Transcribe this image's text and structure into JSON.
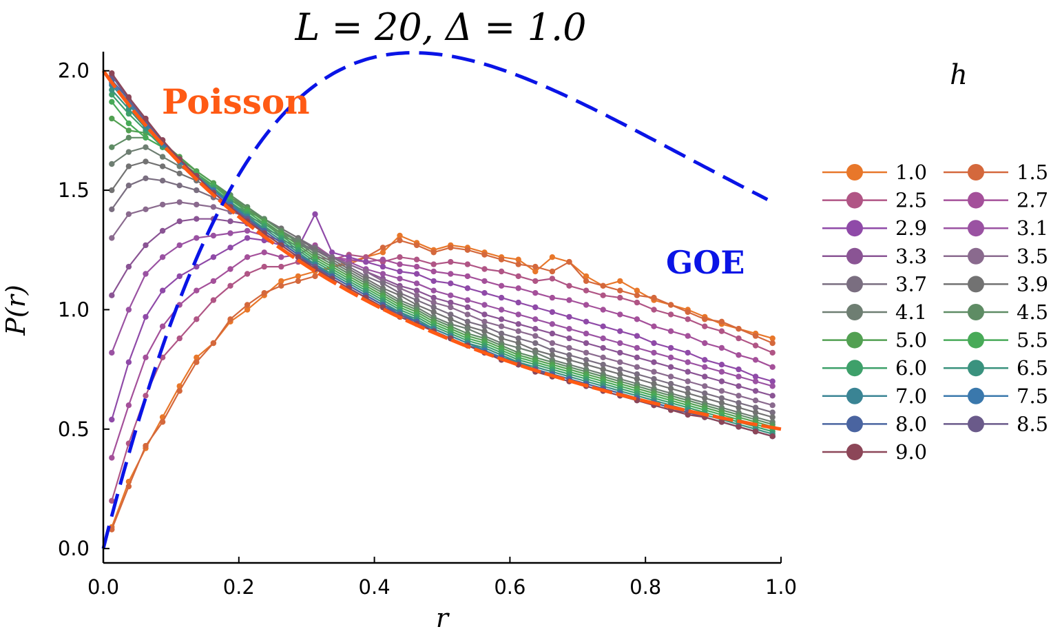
{
  "chart_data": {
    "type": "line",
    "title": "L = 20, Δ = 1.0",
    "xlabel": "r",
    "ylabel": "P(r)",
    "xlim": [
      0.0,
      1.0
    ],
    "ylim": [
      -0.06,
      2.08
    ],
    "xticks": [
      0.0,
      0.2,
      0.4,
      0.6,
      0.8,
      1.0
    ],
    "xtick_labels": [
      "0.0",
      "0.2",
      "0.4",
      "0.6",
      "0.8",
      "1.0"
    ],
    "yticks": [
      0.0,
      0.5,
      1.0,
      1.5,
      2.0
    ],
    "ytick_labels": [
      "0.0",
      "0.5",
      "1.0",
      "1.5",
      "2.0"
    ],
    "grid": false,
    "legend_title": "h",
    "legend_position": "right",
    "annotations": [
      {
        "text": "Poisson",
        "x": 0.09,
        "y": 1.81,
        "color": "#ff5a14"
      },
      {
        "text": "GOE",
        "x": 0.83,
        "y": 1.18,
        "color": "#0a14e6"
      }
    ],
    "reference_curves": [
      {
        "name": "Poisson",
        "formula": "2/(1+r)^2",
        "color": "#ff5a14",
        "dash": "solid"
      },
      {
        "name": "GOE",
        "formula": "(81*sqrt(3)/(4*pi)) * (r+r^2)^1 / (1+r+r^2)^(5/2)",
        "color": "#0a14e6",
        "dash": "long-dash"
      }
    ],
    "r_grid": [
      0.0125,
      0.0375,
      0.0625,
      0.0875,
      0.1125,
      0.1375,
      0.1625,
      0.1875,
      0.2125,
      0.2375,
      0.2625,
      0.2875,
      0.3125,
      0.3375,
      0.3625,
      0.3875,
      0.4125,
      0.4375,
      0.4625,
      0.4875,
      0.5125,
      0.5375,
      0.5625,
      0.5875,
      0.6125,
      0.6375,
      0.6625,
      0.6875,
      0.7125,
      0.7375,
      0.7625,
      0.7875,
      0.8125,
      0.8375,
      0.8625,
      0.8875,
      0.9125,
      0.9375,
      0.9625,
      0.9875
    ],
    "series": [
      {
        "name": "1.0",
        "color": "#e8772a",
        "values": [
          0.09,
          0.28,
          0.42,
          0.55,
          0.68,
          0.8,
          0.86,
          0.95,
          1.0,
          1.06,
          1.12,
          1.14,
          1.16,
          1.18,
          1.2,
          1.22,
          1.24,
          1.31,
          1.28,
          1.25,
          1.27,
          1.26,
          1.24,
          1.22,
          1.21,
          1.16,
          1.22,
          1.2,
          1.14,
          1.1,
          1.12,
          1.08,
          1.04,
          1.02,
          1.0,
          0.97,
          0.94,
          0.92,
          0.9,
          0.88
        ]
      },
      {
        "name": "1.5",
        "color": "#d4683c",
        "values": [
          0.08,
          0.26,
          0.43,
          0.53,
          0.66,
          0.78,
          0.86,
          0.96,
          1.02,
          1.07,
          1.1,
          1.12,
          1.14,
          1.18,
          1.19,
          1.22,
          1.26,
          1.29,
          1.27,
          1.24,
          1.26,
          1.25,
          1.23,
          1.21,
          1.19,
          1.18,
          1.16,
          1.2,
          1.12,
          1.1,
          1.08,
          1.06,
          1.05,
          1.02,
          0.99,
          0.96,
          0.95,
          0.92,
          0.89,
          0.86
        ]
      },
      {
        "name": "2.5",
        "color": "#b05585",
        "values": [
          0.2,
          0.44,
          0.64,
          0.8,
          0.88,
          0.96,
          1.04,
          1.1,
          1.15,
          1.18,
          1.18,
          1.2,
          1.22,
          1.21,
          1.23,
          1.22,
          1.2,
          1.22,
          1.21,
          1.19,
          1.2,
          1.19,
          1.17,
          1.16,
          1.14,
          1.12,
          1.13,
          1.1,
          1.08,
          1.06,
          1.05,
          1.03,
          1.0,
          0.98,
          0.96,
          0.93,
          0.91,
          0.88,
          0.85,
          0.82
        ]
      },
      {
        "name": "2.7",
        "color": "#a4509a",
        "values": [
          0.38,
          0.6,
          0.8,
          0.93,
          1.02,
          1.08,
          1.12,
          1.17,
          1.22,
          1.24,
          1.22,
          1.23,
          1.27,
          1.22,
          1.21,
          1.2,
          1.21,
          1.19,
          1.18,
          1.16,
          1.15,
          1.14,
          1.12,
          1.1,
          1.09,
          1.07,
          1.05,
          1.04,
          1.02,
          1.0,
          0.98,
          0.96,
          0.93,
          0.91,
          0.89,
          0.86,
          0.84,
          0.81,
          0.79,
          0.76
        ]
      },
      {
        "name": "2.9",
        "color": "#8f4aa8",
        "values": [
          0.54,
          0.78,
          0.97,
          1.08,
          1.14,
          1.18,
          1.22,
          1.26,
          1.3,
          1.29,
          1.27,
          1.26,
          1.4,
          1.24,
          1.22,
          1.2,
          1.18,
          1.16,
          1.15,
          1.12,
          1.11,
          1.09,
          1.07,
          1.05,
          1.03,
          1.01,
          0.99,
          0.97,
          0.95,
          0.93,
          0.91,
          0.89,
          0.86,
          0.84,
          0.82,
          0.79,
          0.77,
          0.75,
          0.72,
          0.7
        ]
      },
      {
        "name": "3.1",
        "color": "#9a52a2",
        "values": [
          0.82,
          1.0,
          1.15,
          1.22,
          1.27,
          1.3,
          1.31,
          1.32,
          1.33,
          1.31,
          1.29,
          1.27,
          1.25,
          1.22,
          1.2,
          1.17,
          1.15,
          1.13,
          1.11,
          1.08,
          1.06,
          1.04,
          1.02,
          1.0,
          0.98,
          0.96,
          0.94,
          0.92,
          0.9,
          0.88,
          0.86,
          0.84,
          0.82,
          0.8,
          0.78,
          0.76,
          0.74,
          0.72,
          0.7,
          0.68
        ]
      },
      {
        "name": "3.3",
        "color": "#8a5494",
        "values": [
          1.06,
          1.18,
          1.27,
          1.33,
          1.37,
          1.38,
          1.38,
          1.37,
          1.36,
          1.34,
          1.31,
          1.28,
          1.25,
          1.22,
          1.19,
          1.16,
          1.13,
          1.1,
          1.08,
          1.05,
          1.03,
          1.01,
          0.98,
          0.96,
          0.94,
          0.92,
          0.9,
          0.88,
          0.86,
          0.84,
          0.82,
          0.8,
          0.78,
          0.76,
          0.74,
          0.72,
          0.7,
          0.68,
          0.66,
          0.64
        ]
      },
      {
        "name": "3.5",
        "color": "#8a6a8e",
        "values": [
          1.3,
          1.4,
          1.42,
          1.44,
          1.45,
          1.44,
          1.43,
          1.41,
          1.39,
          1.36,
          1.32,
          1.29,
          1.26,
          1.22,
          1.19,
          1.16,
          1.12,
          1.09,
          1.06,
          1.03,
          1.01,
          0.98,
          0.95,
          0.93,
          0.91,
          0.89,
          0.86,
          0.84,
          0.82,
          0.8,
          0.78,
          0.76,
          0.74,
          0.72,
          0.7,
          0.68,
          0.66,
          0.64,
          0.62,
          0.6
        ]
      },
      {
        "name": "3.7",
        "color": "#7a6e80",
        "values": [
          1.42,
          1.52,
          1.55,
          1.54,
          1.52,
          1.5,
          1.47,
          1.44,
          1.41,
          1.38,
          1.34,
          1.3,
          1.26,
          1.22,
          1.18,
          1.14,
          1.11,
          1.07,
          1.04,
          1.01,
          0.98,
          0.95,
          0.93,
          0.9,
          0.88,
          0.86,
          0.83,
          0.81,
          0.79,
          0.77,
          0.75,
          0.73,
          0.71,
          0.69,
          0.67,
          0.65,
          0.63,
          0.61,
          0.59,
          0.57
        ]
      },
      {
        "name": "3.9",
        "color": "#727272",
        "values": [
          1.5,
          1.6,
          1.62,
          1.6,
          1.57,
          1.54,
          1.5,
          1.46,
          1.42,
          1.38,
          1.34,
          1.3,
          1.25,
          1.21,
          1.17,
          1.13,
          1.09,
          1.06,
          1.02,
          0.99,
          0.96,
          0.93,
          0.91,
          0.88,
          0.86,
          0.83,
          0.81,
          0.79,
          0.77,
          0.75,
          0.73,
          0.71,
          0.69,
          0.67,
          0.65,
          0.63,
          0.61,
          0.59,
          0.57,
          0.55
        ]
      },
      {
        "name": "4.1",
        "color": "#6e7e72",
        "values": [
          1.61,
          1.66,
          1.68,
          1.64,
          1.6,
          1.56,
          1.52,
          1.47,
          1.43,
          1.38,
          1.33,
          1.29,
          1.24,
          1.2,
          1.16,
          1.12,
          1.08,
          1.04,
          1.01,
          0.97,
          0.94,
          0.92,
          0.89,
          0.86,
          0.84,
          0.82,
          0.79,
          0.77,
          0.75,
          0.73,
          0.71,
          0.69,
          0.67,
          0.65,
          0.63,
          0.61,
          0.59,
          0.57,
          0.55,
          0.53
        ]
      },
      {
        "name": "4.5",
        "color": "#5e8c64",
        "values": [
          1.68,
          1.72,
          1.72,
          1.68,
          1.63,
          1.58,
          1.53,
          1.48,
          1.43,
          1.38,
          1.33,
          1.28,
          1.23,
          1.19,
          1.15,
          1.11,
          1.07,
          1.03,
          1.0,
          0.96,
          0.93,
          0.9,
          0.88,
          0.85,
          0.82,
          0.8,
          0.78,
          0.76,
          0.74,
          0.72,
          0.7,
          0.68,
          0.66,
          0.64,
          0.62,
          0.6,
          0.58,
          0.56,
          0.54,
          0.52
        ]
      },
      {
        "name": "5.0",
        "color": "#52a052",
        "values": [
          1.8,
          1.75,
          1.74,
          1.7,
          1.64,
          1.58,
          1.53,
          1.47,
          1.42,
          1.37,
          1.32,
          1.27,
          1.22,
          1.18,
          1.14,
          1.1,
          1.06,
          1.02,
          0.99,
          0.95,
          0.92,
          0.89,
          0.87,
          0.84,
          0.81,
          0.79,
          0.77,
          0.75,
          0.73,
          0.71,
          0.69,
          0.67,
          0.65,
          0.63,
          0.61,
          0.59,
          0.57,
          0.55,
          0.53,
          0.51
        ]
      },
      {
        "name": "5.5",
        "color": "#48aa58",
        "values": [
          1.87,
          1.78,
          1.72,
          1.68,
          1.62,
          1.57,
          1.52,
          1.46,
          1.41,
          1.36,
          1.31,
          1.26,
          1.21,
          1.17,
          1.13,
          1.09,
          1.05,
          1.01,
          0.98,
          0.94,
          0.91,
          0.88,
          0.86,
          0.83,
          0.8,
          0.78,
          0.76,
          0.74,
          0.72,
          0.7,
          0.68,
          0.66,
          0.64,
          0.62,
          0.6,
          0.58,
          0.56,
          0.54,
          0.52,
          0.5
        ]
      },
      {
        "name": "6.0",
        "color": "#3ea06a",
        "values": [
          1.9,
          1.82,
          1.75,
          1.68,
          1.62,
          1.56,
          1.51,
          1.45,
          1.4,
          1.35,
          1.3,
          1.25,
          1.2,
          1.16,
          1.12,
          1.08,
          1.04,
          1.0,
          0.97,
          0.93,
          0.9,
          0.87,
          0.85,
          0.82,
          0.79,
          0.77,
          0.75,
          0.73,
          0.71,
          0.69,
          0.67,
          0.65,
          0.63,
          0.61,
          0.59,
          0.57,
          0.55,
          0.53,
          0.51,
          0.49
        ]
      },
      {
        "name": "6.5",
        "color": "#3a927e",
        "values": [
          1.92,
          1.84,
          1.76,
          1.69,
          1.62,
          1.56,
          1.5,
          1.45,
          1.39,
          1.34,
          1.29,
          1.24,
          1.19,
          1.15,
          1.11,
          1.07,
          1.03,
          0.99,
          0.96,
          0.92,
          0.89,
          0.86,
          0.84,
          0.81,
          0.78,
          0.76,
          0.74,
          0.72,
          0.7,
          0.68,
          0.66,
          0.64,
          0.62,
          0.6,
          0.58,
          0.56,
          0.54,
          0.52,
          0.5,
          0.48
        ]
      },
      {
        "name": "7.0",
        "color": "#3a8494",
        "values": [
          1.94,
          1.86,
          1.77,
          1.69,
          1.62,
          1.56,
          1.5,
          1.44,
          1.39,
          1.33,
          1.28,
          1.23,
          1.19,
          1.14,
          1.1,
          1.06,
          1.02,
          0.99,
          0.95,
          0.92,
          0.89,
          0.86,
          0.83,
          0.8,
          0.78,
          0.75,
          0.73,
          0.71,
          0.69,
          0.67,
          0.65,
          0.63,
          0.61,
          0.59,
          0.57,
          0.55,
          0.53,
          0.51,
          0.49,
          0.47
        ]
      },
      {
        "name": "7.5",
        "color": "#3a78ac",
        "values": [
          1.95,
          1.87,
          1.78,
          1.7,
          1.62,
          1.56,
          1.5,
          1.44,
          1.38,
          1.33,
          1.28,
          1.23,
          1.18,
          1.14,
          1.1,
          1.06,
          1.02,
          0.98,
          0.95,
          0.91,
          0.88,
          0.85,
          0.83,
          0.8,
          0.77,
          0.75,
          0.73,
          0.71,
          0.69,
          0.67,
          0.65,
          0.63,
          0.61,
          0.59,
          0.57,
          0.55,
          0.53,
          0.51,
          0.49,
          0.47
        ]
      },
      {
        "name": "8.0",
        "color": "#4a64a0",
        "values": [
          1.96,
          1.88,
          1.79,
          1.7,
          1.63,
          1.56,
          1.49,
          1.43,
          1.38,
          1.33,
          1.28,
          1.23,
          1.18,
          1.14,
          1.1,
          1.06,
          1.02,
          0.98,
          0.95,
          0.91,
          0.88,
          0.85,
          0.82,
          0.8,
          0.77,
          0.75,
          0.73,
          0.71,
          0.69,
          0.67,
          0.65,
          0.63,
          0.61,
          0.59,
          0.57,
          0.55,
          0.53,
          0.51,
          0.49,
          0.47
        ]
      },
      {
        "name": "8.5",
        "color": "#6a5a8a",
        "values": [
          1.98,
          1.88,
          1.79,
          1.71,
          1.63,
          1.56,
          1.49,
          1.43,
          1.38,
          1.32,
          1.27,
          1.22,
          1.18,
          1.13,
          1.09,
          1.05,
          1.01,
          0.98,
          0.94,
          0.91,
          0.88,
          0.85,
          0.82,
          0.79,
          0.77,
          0.75,
          0.72,
          0.7,
          0.68,
          0.66,
          0.64,
          0.62,
          0.6,
          0.58,
          0.57,
          0.55,
          0.53,
          0.51,
          0.49,
          0.47
        ]
      },
      {
        "name": "9.0",
        "color": "#8c4658",
        "values": [
          1.99,
          1.89,
          1.8,
          1.71,
          1.63,
          1.56,
          1.49,
          1.43,
          1.37,
          1.32,
          1.27,
          1.22,
          1.17,
          1.13,
          1.09,
          1.05,
          1.01,
          0.97,
          0.94,
          0.91,
          0.88,
          0.85,
          0.82,
          0.79,
          0.77,
          0.74,
          0.72,
          0.7,
          0.68,
          0.66,
          0.64,
          0.62,
          0.6,
          0.58,
          0.56,
          0.55,
          0.53,
          0.51,
          0.49,
          0.47
        ]
      }
    ]
  }
}
